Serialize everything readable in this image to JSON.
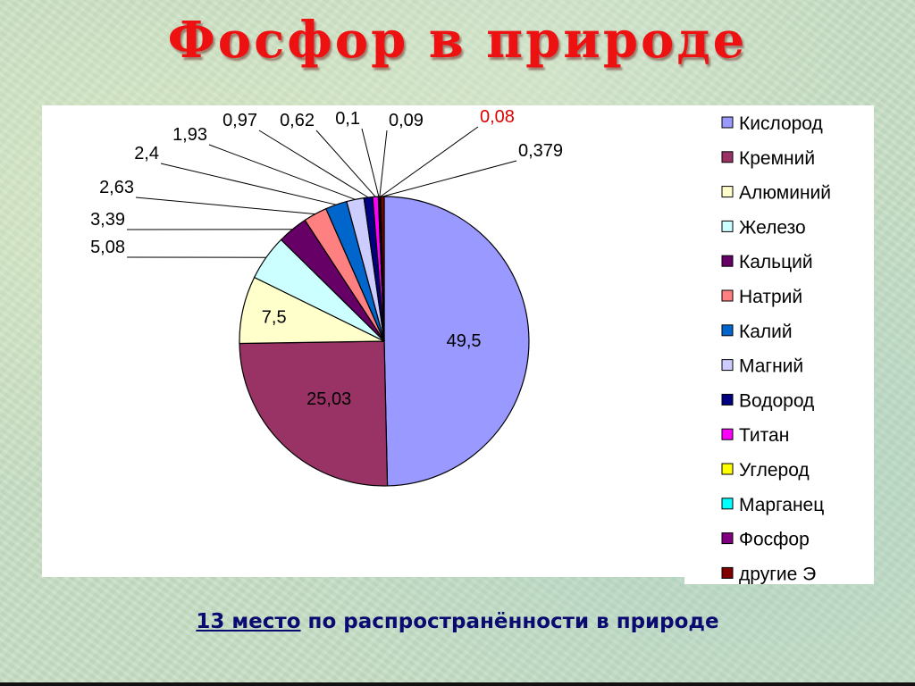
{
  "title": "Фосфор в природе",
  "caption": {
    "rank": "13 место",
    "rest": " по распространённости в природе"
  },
  "chart_data": {
    "type": "pie",
    "title": "",
    "legend_position": "right",
    "slices": [
      {
        "name": "Кислород",
        "value": 49.5,
        "label": "49,5",
        "color": "#9999ff"
      },
      {
        "name": "Кремний",
        "value": 25.03,
        "label": "25,03",
        "color": "#993366"
      },
      {
        "name": "Алюминий",
        "value": 7.5,
        "label": "7,5",
        "color": "#ffffcc"
      },
      {
        "name": "Железо",
        "value": 5.08,
        "label": "5,08",
        "color": "#ccffff"
      },
      {
        "name": "Кальций",
        "value": 3.39,
        "label": "3,39",
        "color": "#660066"
      },
      {
        "name": "Натрий",
        "value": 2.63,
        "label": "2,63",
        "color": "#ff8080"
      },
      {
        "name": "Калий",
        "value": 2.4,
        "label": "2,4",
        "color": "#0066cc"
      },
      {
        "name": "Магний",
        "value": 1.93,
        "label": "1,93",
        "color": "#ccccff"
      },
      {
        "name": "Водород",
        "value": 0.97,
        "label": "0,97",
        "color": "#000080"
      },
      {
        "name": "Титан",
        "value": 0.62,
        "label": "0,62",
        "color": "#ff00ff"
      },
      {
        "name": "Углерод",
        "value": 0.1,
        "label": "0,1",
        "color": "#ffff00"
      },
      {
        "name": "Марганец",
        "value": 0.09,
        "label": "0,09",
        "color": "#00ffff"
      },
      {
        "name": "Фосфор",
        "value": 0.08,
        "label": "0,08",
        "color": "#800080",
        "highlight": "#dd0000"
      },
      {
        "name": "другие Э",
        "value": 0.379,
        "label": "0,379",
        "color": "#800000"
      }
    ]
  }
}
